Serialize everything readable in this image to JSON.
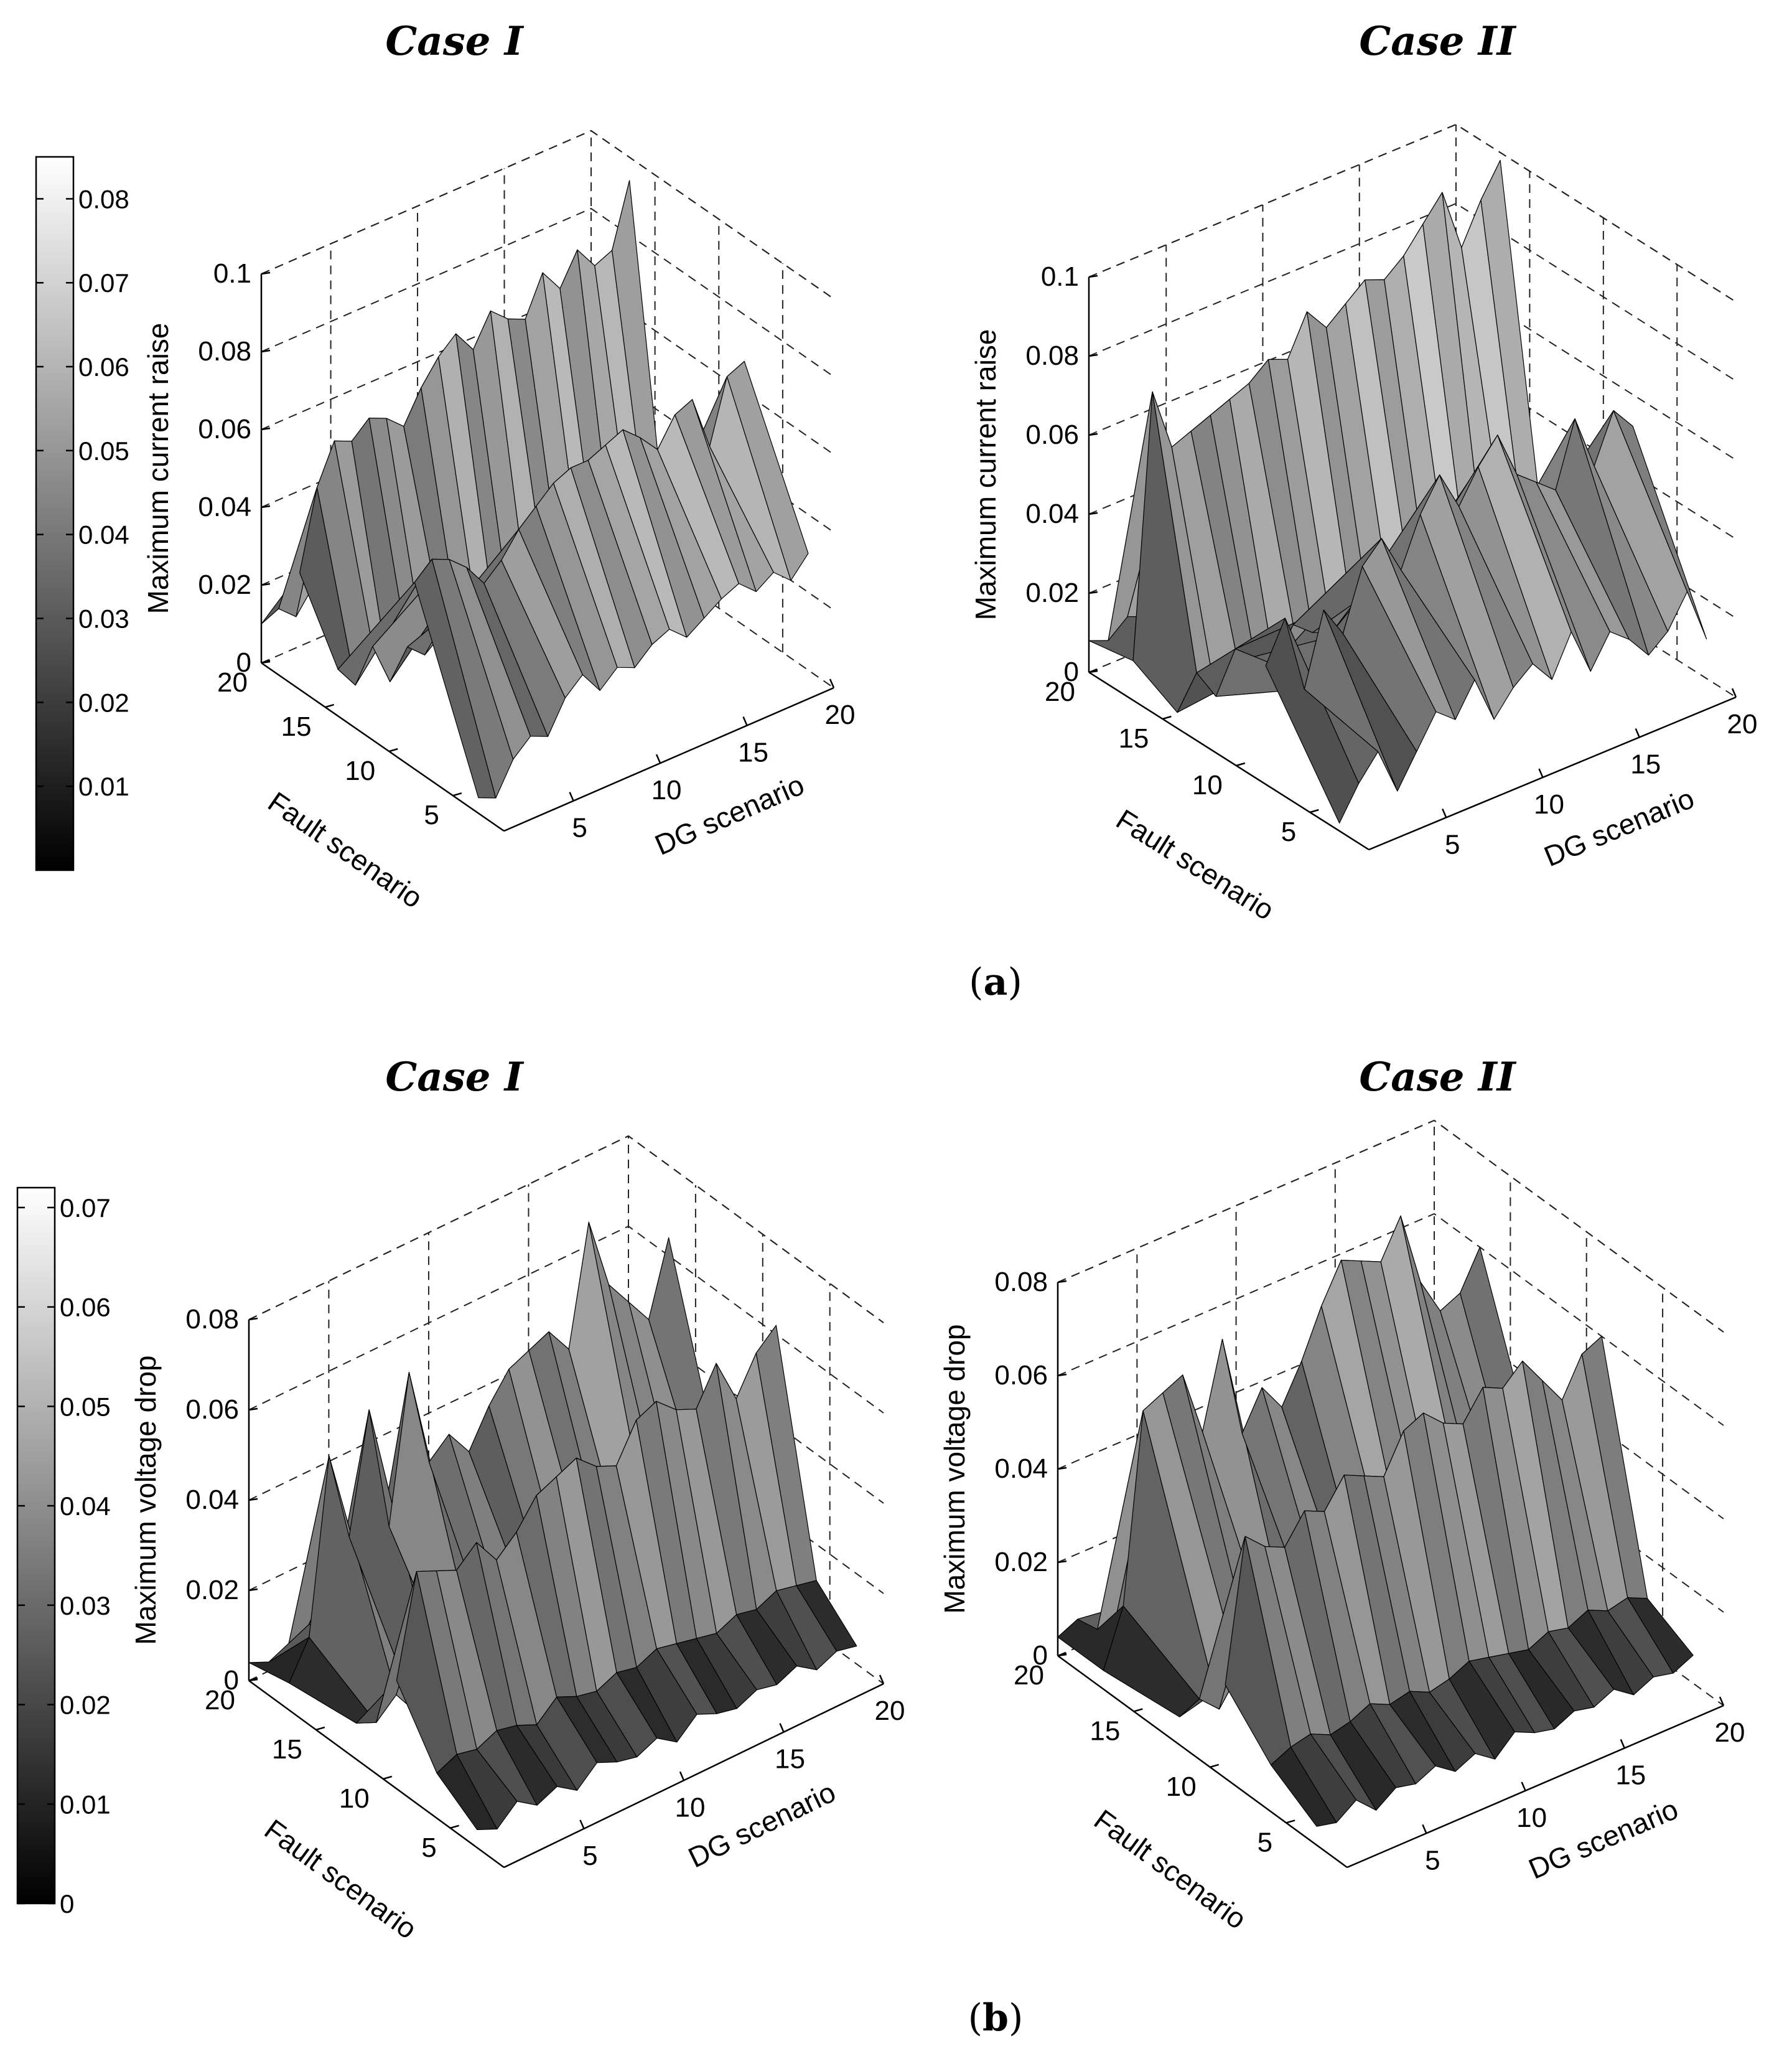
{
  "panels": [
    {
      "id": "a",
      "label_open": "(",
      "label_letter": "a",
      "label_close": ")"
    },
    {
      "id": "b",
      "label_open": "(",
      "label_letter": "b",
      "label_close": ")"
    }
  ],
  "chart_data": [
    {
      "type": "surface3d",
      "panel": "a",
      "title": "Case I",
      "xlabel": "DG scenario",
      "ylabel": "Fault scenario",
      "zlabel": "Maximum current raise",
      "xlim": [
        1,
        20
      ],
      "ylim": [
        1,
        20
      ],
      "zlim": [
        0,
        0.1
      ],
      "xticks": [
        5,
        10,
        15,
        20
      ],
      "yticks": [
        5,
        10,
        15,
        20
      ],
      "zticks": [
        0,
        0.02,
        0.04,
        0.06,
        0.08,
        0.1
      ],
      "colormap": "gray",
      "clim": [
        0,
        0.085
      ],
      "colorbar_ticks": [
        0.01,
        0.02,
        0.03,
        0.04,
        0.05,
        0.06,
        0.07,
        0.08
      ],
      "rows": [
        {
          "fault": 3,
          "values": [
            0.004,
            0.002,
            0.01,
            0.014,
            0.012,
            0.02,
            0.024,
            0.018,
            0.022,
            0.02,
            0.024,
            0.026,
            0.022,
            0.025,
            0.028,
            0.03,
            0.026,
            0.029,
            0.025,
            0.03
          ]
        },
        {
          "fault": 8,
          "values": [
            0.048,
            0.052,
            0.05,
            0.046,
            0.04,
            0.044,
            0.05,
            0.054,
            0.058,
            0.06,
            0.06,
            0.062,
            0.064,
            0.06,
            0.055,
            0.062,
            0.064,
            0.05,
            0.066,
            0.068
          ]
        },
        {
          "fault": 14,
          "values": [
            0.012,
            0.006,
            0.014,
            0.003,
            0.01,
            0.006,
            0.012,
            0.008,
            0.01,
            0.008,
            0.004,
            0.006,
            0.01,
            0.006,
            0.012,
            0.008,
            0.006,
            0.01,
            0.008,
            0.006
          ]
        },
        {
          "fault": 17,
          "values": [
            0.03,
            0.05,
            0.06,
            0.058,
            0.062,
            0.06,
            0.056,
            0.064,
            0.07,
            0.074,
            0.068,
            0.076,
            0.072,
            0.07,
            0.08,
            0.074,
            0.082,
            0.076,
            0.078,
            0.094
          ]
        },
        {
          "fault": 20,
          "values": [
            0.01,
            0.012,
            0.008,
            0.014,
            0.01,
            0.006,
            0.012,
            0.01,
            0.008,
            0.012,
            0.01,
            0.014,
            0.01,
            0.008,
            0.012,
            0.01,
            0.008,
            0.012,
            0.01,
            0.008
          ]
        }
      ]
    },
    {
      "type": "surface3d",
      "panel": "a",
      "title": "Case II",
      "xlabel": "DG scenario",
      "ylabel": "Fault scenario",
      "zlabel": "Maximum current raise",
      "xlim": [
        1,
        20
      ],
      "ylim": [
        1,
        20
      ],
      "zlim": [
        0,
        0.1
      ],
      "xticks": [
        5,
        10,
        15,
        20
      ],
      "yticks": [
        5,
        10,
        15,
        20
      ],
      "zticks": [
        0,
        0.02,
        0.04,
        0.06,
        0.08,
        0.1
      ],
      "colormap": "gray",
      "rows": [
        {
          "fault": 3,
          "values": [
            0.002,
            0.01,
            0.016,
            0.004,
            0.012,
            0.02,
            0.016,
            0.024,
            0.012,
            0.018,
            0.022,
            0.016,
            0.026,
            0.014,
            0.022,
            0.018,
            0.012,
            0.016,
            0.024,
            0.01
          ]
        },
        {
          "fault": 8,
          "values": [
            0.03,
            0.04,
            0.02,
            0.038,
            0.03,
            0.045,
            0.05,
            0.04,
            0.052,
            0.06,
            0.05,
            0.058,
            0.064,
            0.052,
            0.048,
            0.044,
            0.06,
            0.046,
            0.058,
            0.052
          ]
        },
        {
          "fault": 14,
          "values": [
            0.004,
            0.012,
            0.004,
            0.014,
            0.01,
            0.006,
            0.014,
            0.01,
            0.008,
            0.012,
            0.006,
            0.01,
            0.014,
            0.008,
            0.012,
            0.01,
            0.006,
            0.012,
            0.01,
            0.008
          ]
        },
        {
          "fault": 17,
          "values": [
            0.01,
            0.076,
            0.06,
            0.062,
            0.064,
            0.066,
            0.068,
            0.072,
            0.07,
            0.08,
            0.074,
            0.078,
            0.082,
            0.08,
            0.084,
            0.09,
            0.096,
            0.08,
            0.09,
            0.098
          ]
        },
        {
          "fault": 20,
          "values": [
            0.008,
            0.006,
            0.01,
            0.008,
            0.012,
            0.006,
            0.01,
            0.008,
            0.012,
            0.01,
            0.006,
            0.008,
            0.012,
            0.01,
            0.008,
            0.006,
            0.01,
            0.008,
            0.012,
            0.01
          ]
        }
      ]
    },
    {
      "type": "surface3d",
      "panel": "b",
      "title": "Case I",
      "xlabel": "DG scenario",
      "ylabel": "Fault scenario",
      "zlabel": "Maximum voltage drop",
      "xlim": [
        1,
        20
      ],
      "ylim": [
        1,
        20
      ],
      "zlim": [
        0,
        0.08
      ],
      "xticks": [
        5,
        10,
        15,
        20
      ],
      "yticks": [
        5,
        10,
        15,
        20
      ],
      "zticks": [
        0,
        0.02,
        0.04,
        0.06,
        0.08
      ],
      "colormap": "gray",
      "clim": [
        0,
        0.072
      ],
      "colorbar_ticks": [
        0,
        0.01,
        0.02,
        0.03,
        0.04,
        0.05,
        0.06,
        0.07
      ],
      "rows": [
        {
          "fault": 3,
          "values": [
            0.004,
            0.002,
            0.006,
            0.003,
            0.005,
            0.002,
            0.006,
            0.004,
            0.003,
            0.005,
            0.002,
            0.006,
            0.004,
            0.003,
            0.005,
            0.004,
            0.006,
            0.003,
            0.005,
            0.004
          ]
        },
        {
          "fault": 6,
          "values": [
            0.01,
            0.012,
            0.011,
            0.013,
            0.012,
            0.01,
            0.014,
            0.012,
            0.011,
            0.013,
            0.012,
            0.014,
            0.013,
            0.012,
            0.011,
            0.013,
            0.012,
            0.014,
            0.013,
            0.012
          ]
        },
        {
          "fault": 9,
          "values": [
            0.024,
            0.046,
            0.044,
            0.042,
            0.046,
            0.04,
            0.044,
            0.05,
            0.052,
            0.054,
            0.05,
            0.048,
            0.056,
            0.058,
            0.054,
            0.052,
            0.06,
            0.05,
            0.058,
            0.062
          ]
        },
        {
          "fault": 12,
          "values": [
            0.008,
            0.006,
            0.01,
            0.004,
            0.008,
            0.006,
            0.01,
            0.008,
            0.006,
            0.01,
            0.008,
            0.006,
            0.01,
            0.008,
            0.006,
            0.01,
            0.008,
            0.006,
            0.01,
            0.008
          ]
        },
        {
          "fault": 17,
          "values": [
            0.006,
            0.014,
            0.052,
            0.032,
            0.058,
            0.03,
            0.062,
            0.04,
            0.044,
            0.038,
            0.046,
            0.052,
            0.054,
            0.056,
            0.05,
            0.076,
            0.06,
            0.054,
            0.048,
            0.064
          ]
        },
        {
          "fault": 20,
          "values": [
            0.004,
            0.002,
            0.004,
            0.006,
            0.004,
            0.002,
            0.004,
            0.006,
            0.004,
            0.002,
            0.004,
            0.006,
            0.004,
            0.002,
            0.004,
            0.006,
            0.004,
            0.002,
            0.004,
            0.006
          ]
        }
      ]
    },
    {
      "type": "surface3d",
      "panel": "b",
      "title": "Case II",
      "xlabel": "DG scenario",
      "ylabel": "Fault scenario",
      "zlabel": "Maximum voltage drop",
      "xlim": [
        1,
        20
      ],
      "ylim": [
        1,
        20
      ],
      "zlim": [
        0,
        0.08
      ],
      "xticks": [
        5,
        10,
        15,
        20
      ],
      "yticks": [
        5,
        10,
        15,
        20
      ],
      "zticks": [
        0,
        0.02,
        0.04,
        0.06,
        0.08
      ],
      "colormap": "gray",
      "rows": [
        {
          "fault": 3,
          "values": [
            0.004,
            0.003,
            0.006,
            0.002,
            0.005,
            0.004,
            0.006,
            0.003,
            0.005,
            0.002,
            0.006,
            0.004,
            0.003,
            0.005,
            0.004,
            0.006,
            0.003,
            0.005,
            0.004,
            0.006
          ]
        },
        {
          "fault": 6,
          "values": [
            0.01,
            0.012,
            0.013,
            0.011,
            0.012,
            0.014,
            0.012,
            0.013,
            0.011,
            0.012,
            0.014,
            0.013,
            0.012,
            0.011,
            0.013,
            0.012,
            0.014,
            0.012,
            0.013,
            0.011
          ]
        },
        {
          "fault": 9,
          "values": [
            0.02,
            0.05,
            0.046,
            0.044,
            0.05,
            0.048,
            0.054,
            0.052,
            0.05,
            0.058,
            0.06,
            0.056,
            0.054,
            0.06,
            0.058,
            0.062,
            0.056,
            0.05,
            0.058,
            0.06
          ]
        },
        {
          "fault": 12,
          "values": [
            0.006,
            0.008,
            0.004,
            0.01,
            0.006,
            0.008,
            0.004,
            0.01,
            0.006,
            0.008,
            0.004,
            0.01,
            0.006,
            0.008,
            0.004,
            0.01,
            0.006,
            0.008,
            0.004,
            0.01
          ]
        },
        {
          "fault": 17,
          "values": [
            0.004,
            0.016,
            0.056,
            0.058,
            0.06,
            0.046,
            0.064,
            0.042,
            0.05,
            0.044,
            0.052,
            0.062,
            0.07,
            0.068,
            0.066,
            0.074,
            0.058,
            0.05,
            0.052,
            0.06
          ]
        },
        {
          "fault": 20,
          "values": [
            0.004,
            0.006,
            0.002,
            0.004,
            0.006,
            0.002,
            0.004,
            0.006,
            0.002,
            0.004,
            0.006,
            0.002,
            0.004,
            0.006,
            0.002,
            0.004,
            0.006,
            0.002,
            0.004,
            0.006
          ]
        }
      ]
    }
  ]
}
